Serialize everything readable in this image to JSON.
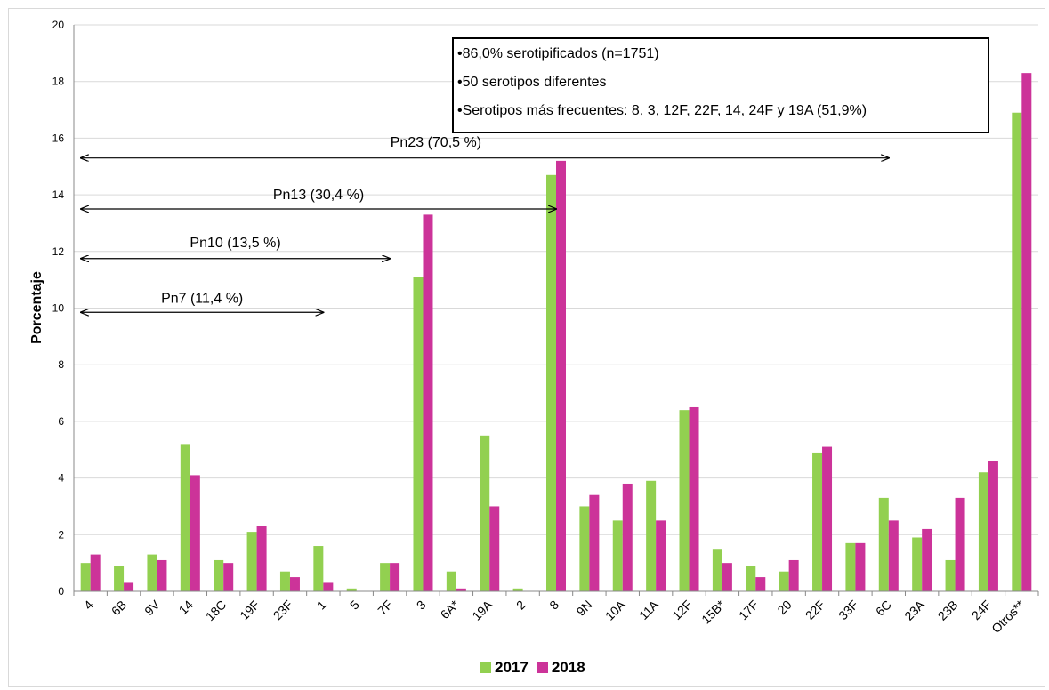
{
  "colors": {
    "series_2017": "#92d050",
    "series_2018": "#cc3399",
    "axis": "#888888",
    "grid": "#d9d9d9"
  },
  "info_box": {
    "lines": [
      "•86,0% serotipificados  (n=1751)",
      "•50 serotipos diferentes",
      "•Serotipos más frecuentes: 8, 3, 12F, 22F, 14, 24F y 19A (51,9%)"
    ]
  },
  "legend": {
    "label_2017": "2017",
    "label_2018": "2018"
  },
  "chart_data": {
    "type": "bar",
    "title": "",
    "xlabel": "",
    "ylabel": "Porcentaje",
    "ylim": [
      0,
      20
    ],
    "yticks": [
      0,
      2,
      4,
      6,
      8,
      10,
      12,
      14,
      16,
      18,
      20
    ],
    "grid": true,
    "legend_position": "bottom",
    "categories": [
      "4",
      "6B",
      "9V",
      "14",
      "18C",
      "19F",
      "23F",
      "1",
      "5",
      "7F",
      "3",
      "6A*",
      "19A",
      "2",
      "8",
      "9N",
      "10A",
      "11A",
      "12F",
      "15B*",
      "17F",
      "20",
      "22F",
      "33F",
      "6C",
      "23A",
      "23B",
      "24F",
      "Otros**"
    ],
    "series": [
      {
        "name": "2017",
        "values": [
          1.0,
          0.9,
          1.3,
          5.2,
          1.1,
          2.1,
          0.7,
          1.6,
          0.1,
          1.0,
          11.1,
          0.7,
          5.5,
          0.1,
          14.7,
          3.0,
          2.5,
          3.9,
          6.4,
          1.5,
          0.9,
          0.7,
          4.9,
          1.7,
          3.3,
          1.9,
          1.1,
          4.2,
          16.9
        ]
      },
      {
        "name": "2018",
        "values": [
          1.3,
          0.3,
          1.1,
          4.1,
          1.0,
          2.3,
          0.5,
          0.3,
          0.0,
          1.0,
          13.3,
          0.1,
          3.0,
          0.0,
          15.2,
          3.4,
          3.8,
          2.5,
          6.5,
          1.0,
          0.5,
          1.1,
          5.1,
          1.7,
          2.5,
          2.2,
          3.3,
          4.6,
          18.3
        ]
      }
    ],
    "annotations": [
      {
        "label": "Pn7 (11,4 %)",
        "from": "4",
        "to": "1",
        "y": 9.85,
        "label_y": 10.35
      },
      {
        "label": "Pn10 (13,5 %)",
        "from": "4",
        "to": "7F",
        "y": 11.75,
        "label_y": 12.3
      },
      {
        "label": "Pn13 (30,4 %)",
        "from": "4",
        "to": "8",
        "y": 13.5,
        "label_y": 14.0
      },
      {
        "label": "Pn23 (70,5 %)",
        "from": "4",
        "to": "6C",
        "y": 15.3,
        "label_y": 15.85
      }
    ]
  }
}
